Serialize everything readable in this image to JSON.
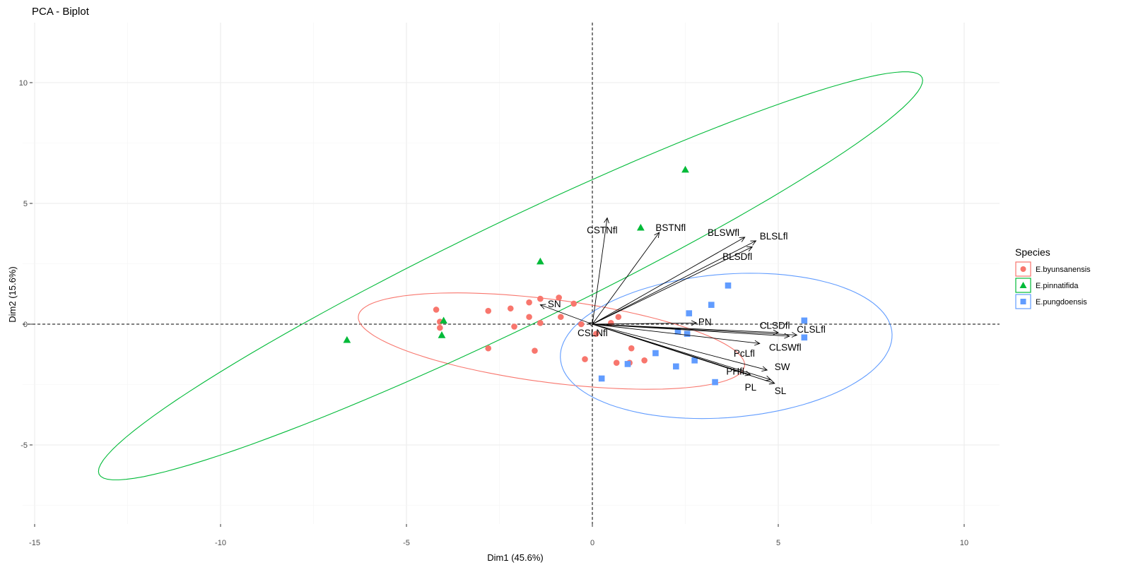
{
  "chart_data": {
    "type": "scatter",
    "title": "PCA - Biplot",
    "xlabel": "Dim1 (45.6%)",
    "ylabel": "Dim2 (15.6%)",
    "xlim": [
      -15,
      11
    ],
    "ylim": [
      -8.3,
      12.5
    ],
    "x_ticks": [
      -15,
      -10,
      -5,
      0,
      5,
      10
    ],
    "y_ticks": [
      -5,
      0,
      5,
      10
    ],
    "x_tick_labels": [
      "-15",
      "-10",
      "-5",
      "0",
      "5",
      "10"
    ],
    "y_tick_labels": [
      "-5",
      "0",
      "5",
      "10"
    ],
    "grid": true,
    "legend": {
      "title": "Species",
      "position": "right",
      "entries": [
        "E.byunsanensis",
        "E.pinnatifida",
        "E.pungdoensis"
      ]
    },
    "series": [
      {
        "name": "E.byunsanensis",
        "color": "#F8766D",
        "marker": "circle",
        "points": [
          [
            -4.2,
            0.6
          ],
          [
            -4.1,
            0.1
          ],
          [
            -4.1,
            -0.15
          ],
          [
            -2.8,
            0.55
          ],
          [
            -2.8,
            -1.0
          ],
          [
            -2.2,
            0.65
          ],
          [
            -2.1,
            -0.1
          ],
          [
            -1.7,
            0.9
          ],
          [
            -1.7,
            0.3
          ],
          [
            -1.55,
            -1.1
          ],
          [
            -1.4,
            1.05
          ],
          [
            -1.4,
            0.05
          ],
          [
            -0.9,
            1.1
          ],
          [
            -0.85,
            0.3
          ],
          [
            -0.5,
            0.85
          ],
          [
            -0.3,
            0.0
          ],
          [
            -0.2,
            -1.45
          ],
          [
            0.1,
            -0.4
          ],
          [
            0.5,
            0.05
          ],
          [
            0.65,
            -1.6
          ],
          [
            0.7,
            0.3
          ],
          [
            1.0,
            -1.6
          ],
          [
            1.05,
            -1.0
          ],
          [
            1.4,
            -1.5
          ]
        ]
      },
      {
        "name": "E.pinnatifida",
        "color": "#00BA38",
        "marker": "triangle",
        "points": [
          [
            -6.6,
            -0.65
          ],
          [
            -4.0,
            0.15
          ],
          [
            -4.05,
            -0.45
          ],
          [
            -1.4,
            2.6
          ],
          [
            1.3,
            4.0
          ],
          [
            2.5,
            6.4
          ]
        ]
      },
      {
        "name": "E.pungdoensis",
        "color": "#619CFF",
        "marker": "square",
        "points": [
          [
            0.25,
            -2.25
          ],
          [
            0.95,
            -1.65
          ],
          [
            1.7,
            -1.2
          ],
          [
            2.25,
            -1.75
          ],
          [
            2.3,
            -0.3
          ],
          [
            2.55,
            -0.4
          ],
          [
            2.6,
            0.45
          ],
          [
            2.75,
            -1.5
          ],
          [
            3.2,
            0.8
          ],
          [
            3.3,
            -2.4
          ],
          [
            3.65,
            1.6
          ],
          [
            5.7,
            0.15
          ],
          [
            5.7,
            -0.55
          ]
        ]
      }
    ],
    "ellipses": [
      {
        "series": "E.byunsanensis",
        "color": "#F8766D",
        "cx": -1.1,
        "cy": -0.7,
        "a": 5.3,
        "b": 1.7,
        "angle_deg": -12
      },
      {
        "series": "E.pinnatifida",
        "color": "#00BA38",
        "cx": -2.2,
        "cy": 2.0,
        "a": 13.8,
        "b": 1.95,
        "angle_deg": 37
      },
      {
        "series": "E.pungdoensis",
        "color": "#619CFF",
        "cx": 3.6,
        "cy": -0.9,
        "a": 4.5,
        "b": 2.95,
        "angle_deg": 10
      }
    ],
    "variables": [
      {
        "name": "CSTNfl",
        "x": 0.4,
        "y": 4.4,
        "lx": -0.15,
        "ly": 3.9
      },
      {
        "name": "BSTNfl",
        "x": 1.8,
        "y": 3.8,
        "lx": 1.7,
        "ly": 4.0
      },
      {
        "name": "BLSWfl",
        "x": 4.1,
        "y": 3.6,
        "lx": 3.1,
        "ly": 3.8
      },
      {
        "name": "BLSLfl",
        "x": 4.4,
        "y": 3.45,
        "lx": 4.5,
        "ly": 3.65
      },
      {
        "name": "BLSDfl",
        "x": 4.3,
        "y": 3.2,
        "lx": 3.5,
        "ly": 2.8
      },
      {
        "name": "SN",
        "x": -1.4,
        "y": 0.8,
        "lx": -1.2,
        "ly": 0.85
      },
      {
        "name": "CSLNfl",
        "x": -0.1,
        "y": 0.05,
        "lx": -0.4,
        "ly": -0.35
      },
      {
        "name": "PN",
        "x": 2.8,
        "y": 0.05,
        "lx": 2.85,
        "ly": 0.1
      },
      {
        "name": "CLSDfl",
        "x": 5.0,
        "y": -0.35,
        "lx": 4.5,
        "ly": -0.05
      },
      {
        "name": "CLSLfl",
        "x": 5.5,
        "y": -0.45,
        "lx": 5.5,
        "ly": -0.2
      },
      {
        "name": "CLSWfl",
        "x": 5.3,
        "y": -0.5,
        "lx": 4.75,
        "ly": -0.95
      },
      {
        "name": "PcLfl",
        "x": 4.5,
        "y": -0.8,
        "lx": 3.8,
        "ly": -1.2
      },
      {
        "name": "SW",
        "x": 4.7,
        "y": -1.9,
        "lx": 4.9,
        "ly": -1.75
      },
      {
        "name": "PHfl",
        "x": 4.25,
        "y": -2.1,
        "lx": 3.6,
        "ly": -1.95
      },
      {
        "name": "PL",
        "x": 4.8,
        "y": -2.3,
        "lx": 4.1,
        "ly": -2.6
      },
      {
        "name": "SL",
        "x": 4.9,
        "y": -2.45,
        "lx": 4.9,
        "ly": -2.75
      }
    ]
  }
}
